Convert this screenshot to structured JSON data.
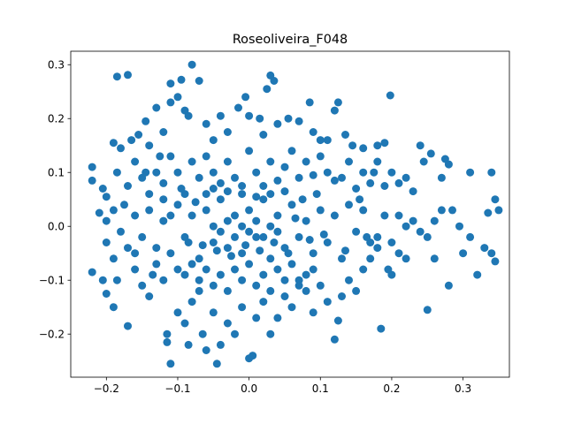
{
  "chart_data": {
    "type": "scatter",
    "title": "Roseoliveira_F048",
    "xlabel": "",
    "ylabel": "",
    "xlim": [
      -0.25,
      0.365
    ],
    "ylim": [
      -0.28,
      0.325
    ],
    "xticks": [
      -0.2,
      -0.1,
      0.0,
      0.1,
      0.2,
      0.3
    ],
    "xtick_labels": [
      "−0.2",
      "−0.1",
      "0.0",
      "0.1",
      "0.2",
      "0.3"
    ],
    "yticks": [
      -0.2,
      -0.1,
      0.0,
      0.1,
      0.2,
      0.3
    ],
    "ytick_labels": [
      "−0.2",
      "−0.1",
      "0.0",
      "0.1",
      "0.2",
      "0.3"
    ],
    "grid": false,
    "marker_color": "#1f77b4",
    "series": [
      {
        "points": [
          [
            -0.185,
            0.278
          ],
          [
            -0.17,
            0.281
          ],
          [
            -0.08,
            0.3
          ],
          [
            -0.095,
            0.272
          ],
          [
            -0.11,
            0.265
          ],
          [
            -0.07,
            0.27
          ],
          [
            -0.1,
            0.24
          ],
          [
            -0.09,
            0.215
          ],
          [
            -0.04,
            0.205
          ],
          [
            -0.015,
            0.22
          ],
          [
            -0.005,
            0.24
          ],
          [
            0.025,
            0.255
          ],
          [
            0.03,
            0.28
          ],
          [
            0.035,
            0.27
          ],
          [
            0.085,
            0.23
          ],
          [
            0.125,
            0.23
          ],
          [
            0.12,
            0.215
          ],
          [
            0.198,
            0.243
          ],
          [
            -0.11,
            0.23
          ],
          [
            -0.13,
            0.22
          ],
          [
            -0.145,
            0.195
          ],
          [
            -0.155,
            0.17
          ],
          [
            -0.14,
            0.15
          ],
          [
            -0.19,
            0.155
          ],
          [
            -0.18,
            0.145
          ],
          [
            -0.165,
            0.16
          ],
          [
            -0.12,
            0.175
          ],
          [
            -0.085,
            0.205
          ],
          [
            -0.06,
            0.19
          ],
          [
            -0.05,
            0.16
          ],
          [
            -0.03,
            0.175
          ],
          [
            0.0,
            0.205
          ],
          [
            0.015,
            0.2
          ],
          [
            0.02,
            0.17
          ],
          [
            0.04,
            0.19
          ],
          [
            0.055,
            0.2
          ],
          [
            0.07,
            0.195
          ],
          [
            0.09,
            0.175
          ],
          [
            0.1,
            0.16
          ],
          [
            0.11,
            0.16
          ],
          [
            0.135,
            0.17
          ],
          [
            0.16,
            0.145
          ],
          [
            0.18,
            0.15
          ],
          [
            0.19,
            0.155
          ],
          [
            0.24,
            0.15
          ],
          [
            0.255,
            0.135
          ],
          [
            0.275,
            0.125
          ],
          [
            0.28,
            0.115
          ],
          [
            0.2,
            0.1
          ],
          [
            0.22,
            0.09
          ],
          [
            -0.22,
            0.11
          ],
          [
            -0.22,
            0.085
          ],
          [
            -0.205,
            0.07
          ],
          [
            -0.2,
            0.055
          ],
          [
            -0.19,
            0.03
          ],
          [
            -0.21,
            0.025
          ],
          [
            -0.2,
            0.01
          ],
          [
            -0.185,
            0.1
          ],
          [
            -0.17,
            0.075
          ],
          [
            -0.16,
            0.12
          ],
          [
            -0.15,
            0.09
          ],
          [
            -0.14,
            0.06
          ],
          [
            -0.13,
            0.1
          ],
          [
            -0.12,
            0.08
          ],
          [
            -0.11,
            0.13
          ],
          [
            -0.1,
            0.1
          ],
          [
            -0.09,
            0.06
          ],
          [
            -0.08,
            0.12
          ],
          [
            -0.07,
            0.09
          ],
          [
            -0.06,
            0.13
          ],
          [
            -0.05,
            0.1
          ],
          [
            -0.04,
            0.08
          ],
          [
            -0.03,
            0.12
          ],
          [
            -0.02,
            0.09
          ],
          [
            -0.01,
            0.06
          ],
          [
            0.0,
            0.14
          ],
          [
            0.01,
            0.1
          ],
          [
            0.02,
            0.075
          ],
          [
            0.03,
            0.12
          ],
          [
            0.04,
            0.085
          ],
          [
            0.05,
            0.11
          ],
          [
            0.06,
            0.14
          ],
          [
            0.07,
            0.09
          ],
          [
            0.08,
            0.12
          ],
          [
            0.09,
            0.095
          ],
          [
            0.1,
            0.13
          ],
          [
            0.11,
            0.1
          ],
          [
            0.12,
            0.085
          ],
          [
            0.13,
            0.09
          ],
          [
            0.14,
            0.12
          ],
          [
            0.15,
            0.07
          ],
          [
            0.16,
            0.1
          ],
          [
            0.17,
            0.08
          ],
          [
            0.18,
            0.12
          ],
          [
            0.19,
            0.075
          ],
          [
            0.21,
            0.08
          ],
          [
            0.23,
            0.065
          ],
          [
            0.245,
            0.12
          ],
          [
            0.27,
            0.09
          ],
          [
            0.31,
            0.1
          ],
          [
            0.34,
            0.1
          ],
          [
            0.345,
            0.05
          ],
          [
            0.35,
            0.03
          ],
          [
            0.335,
            0.025
          ],
          [
            -0.22,
            -0.085
          ],
          [
            -0.205,
            -0.1
          ],
          [
            -0.2,
            -0.125
          ],
          [
            -0.19,
            -0.15
          ],
          [
            -0.185,
            -0.1
          ],
          [
            -0.17,
            -0.185
          ],
          [
            -0.16,
            -0.08
          ],
          [
            -0.15,
            -0.11
          ],
          [
            -0.14,
            -0.13
          ],
          [
            -0.13,
            -0.07
          ],
          [
            -0.12,
            -0.1
          ],
          [
            -0.115,
            -0.2
          ],
          [
            -0.115,
            -0.215
          ],
          [
            -0.11,
            -0.255
          ],
          [
            -0.1,
            -0.16
          ],
          [
            -0.09,
            -0.18
          ],
          [
            -0.085,
            -0.22
          ],
          [
            -0.08,
            -0.14
          ],
          [
            -0.07,
            -0.12
          ],
          [
            -0.065,
            -0.2
          ],
          [
            -0.06,
            -0.23
          ],
          [
            -0.05,
            -0.16
          ],
          [
            -0.045,
            -0.255
          ],
          [
            -0.04,
            -0.22
          ],
          [
            -0.03,
            -0.18
          ],
          [
            -0.02,
            -0.2
          ],
          [
            -0.01,
            -0.15
          ],
          [
            0.0,
            -0.245
          ],
          [
            0.005,
            -0.24
          ],
          [
            0.01,
            -0.17
          ],
          [
            0.02,
            -0.14
          ],
          [
            0.03,
            -0.2
          ],
          [
            0.04,
            -0.17
          ],
          [
            0.05,
            -0.13
          ],
          [
            0.06,
            -0.15
          ],
          [
            0.07,
            -0.1
          ],
          [
            0.08,
            -0.12
          ],
          [
            0.09,
            -0.16
          ],
          [
            0.1,
            -0.11
          ],
          [
            0.11,
            -0.14
          ],
          [
            0.12,
            -0.21
          ],
          [
            0.125,
            -0.175
          ],
          [
            0.13,
            -0.13
          ],
          [
            0.14,
            -0.1
          ],
          [
            0.15,
            -0.12
          ],
          [
            0.16,
            -0.08
          ],
          [
            0.17,
            -0.06
          ],
          [
            0.18,
            -0.04
          ],
          [
            0.185,
            -0.19
          ],
          [
            0.195,
            -0.08
          ],
          [
            0.2,
            -0.09
          ],
          [
            0.21,
            -0.05
          ],
          [
            0.22,
            -0.06
          ],
          [
            0.25,
            -0.155
          ],
          [
            0.26,
            -0.06
          ],
          [
            0.28,
            -0.11
          ],
          [
            0.3,
            -0.05
          ],
          [
            0.32,
            -0.09
          ],
          [
            0.33,
            -0.04
          ],
          [
            0.345,
            -0.065
          ],
          [
            0.34,
            -0.05
          ],
          [
            0.31,
            -0.02
          ],
          [
            0.295,
            0.0
          ],
          [
            0.285,
            0.03
          ],
          [
            0.27,
            0.03
          ],
          [
            0.26,
            0.01
          ],
          [
            0.25,
            -0.02
          ],
          [
            0.24,
            -0.01
          ],
          [
            0.23,
            0.01
          ],
          [
            0.22,
            0.0
          ],
          [
            0.21,
            0.02
          ],
          [
            0.2,
            -0.03
          ],
          [
            0.19,
            0.02
          ],
          [
            0.18,
            -0.02
          ],
          [
            -0.2,
            -0.03
          ],
          [
            -0.19,
            -0.06
          ],
          [
            -0.18,
            -0.01
          ],
          [
            -0.17,
            -0.04
          ],
          [
            -0.16,
            0.02
          ],
          [
            -0.15,
            -0.02
          ],
          [
            -0.14,
            0.03
          ],
          [
            -0.13,
            -0.04
          ],
          [
            -0.12,
            0.01
          ],
          [
            -0.11,
            -0.05
          ],
          [
            -0.1,
            0.04
          ],
          [
            -0.09,
            -0.02
          ],
          [
            -0.08,
            0.02
          ],
          [
            -0.07,
            -0.06
          ],
          [
            -0.06,
            0.03
          ],
          [
            -0.05,
            -0.03
          ],
          [
            -0.04,
            0.05
          ],
          [
            -0.03,
            -0.04
          ],
          [
            -0.02,
            0.02
          ],
          [
            -0.01,
            -0.05
          ],
          [
            0.0,
            0.03
          ],
          [
            0.01,
            -0.02
          ],
          [
            0.02,
            0.05
          ],
          [
            0.03,
            -0.06
          ],
          [
            0.04,
            0.02
          ],
          [
            0.05,
            -0.04
          ],
          [
            0.06,
            0.04
          ],
          [
            0.07,
            -0.02
          ],
          [
            0.08,
            0.01
          ],
          [
            0.09,
            -0.05
          ],
          [
            0.1,
            0.03
          ],
          [
            0.11,
            -0.03
          ],
          [
            0.12,
            0.02
          ],
          [
            0.13,
            -0.06
          ],
          [
            0.14,
            0.04
          ],
          [
            0.15,
            -0.01
          ],
          [
            0.16,
            0.03
          ],
          [
            0.17,
            -0.03
          ],
          [
            -0.1,
            -0.08
          ],
          [
            -0.09,
            -0.09
          ],
          [
            -0.08,
            -0.07
          ],
          [
            -0.07,
            -0.1
          ],
          [
            -0.06,
            -0.08
          ],
          [
            -0.05,
            -0.11
          ],
          [
            -0.04,
            -0.09
          ],
          [
            -0.03,
            -0.12
          ],
          [
            -0.02,
            -0.08
          ],
          [
            -0.01,
            -0.1
          ],
          [
            0.0,
            -0.07
          ],
          [
            0.01,
            -0.11
          ],
          [
            0.02,
            -0.09
          ],
          [
            0.03,
            -0.12
          ],
          [
            0.04,
            -0.08
          ],
          [
            0.05,
            -0.1
          ],
          [
            0.06,
            -0.07
          ],
          [
            0.07,
            -0.11
          ],
          [
            0.08,
            -0.09
          ],
          [
            0.09,
            -0.08
          ],
          [
            -0.05,
            0.0
          ],
          [
            -0.04,
            -0.01
          ],
          [
            -0.03,
            0.01
          ],
          [
            -0.02,
            -0.02
          ],
          [
            -0.01,
            0.0
          ],
          [
            0.0,
            -0.01
          ],
          [
            0.01,
            0.01
          ],
          [
            0.02,
            -0.02
          ],
          [
            0.03,
            0.0
          ],
          [
            0.04,
            -0.01
          ],
          [
            -0.06,
            0.06
          ],
          [
            -0.05,
            0.07
          ],
          [
            -0.03,
            0.065
          ],
          [
            -0.01,
            0.075
          ],
          [
            0.01,
            0.055
          ],
          [
            0.03,
            0.06
          ],
          [
            0.05,
            0.065
          ],
          [
            -0.065,
            -0.035
          ],
          [
            -0.045,
            -0.045
          ],
          [
            -0.025,
            -0.055
          ],
          [
            -0.005,
            -0.035
          ],
          [
            0.015,
            -0.045
          ],
          [
            0.035,
            -0.03
          ],
          [
            0.055,
            -0.05
          ],
          [
            -0.12,
            0.05
          ],
          [
            -0.11,
            0.02
          ],
          [
            -0.095,
            0.07
          ],
          [
            -0.085,
            -0.03
          ],
          [
            -0.075,
            0.045
          ],
          [
            0.065,
            0.015
          ],
          [
            0.075,
            0.05
          ],
          [
            0.085,
            -0.025
          ],
          [
            0.095,
            0.06
          ],
          [
            0.105,
            -0.015
          ],
          [
            -0.16,
            -0.05
          ],
          [
            -0.175,
            0.04
          ],
          [
            -0.145,
            0.1
          ],
          [
            -0.135,
            -0.09
          ],
          [
            -0.125,
            0.13
          ],
          [
            0.135,
            -0.045
          ],
          [
            0.145,
            0.15
          ],
          [
            0.155,
            0.05
          ],
          [
            0.165,
            -0.02
          ],
          [
            0.175,
            0.1
          ]
        ]
      }
    ]
  }
}
